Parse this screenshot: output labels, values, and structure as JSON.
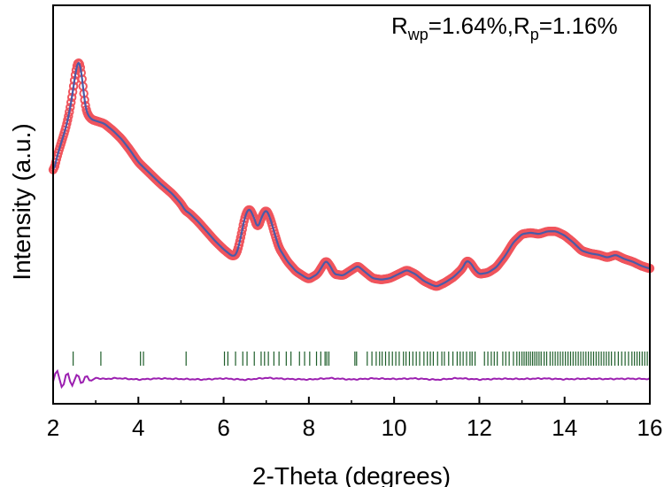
{
  "chart_data": {
    "type": "scatter",
    "xlabel": "2-Theta (degrees)",
    "ylabel": "Intensity (a.u.)",
    "xlim": [
      2,
      16
    ],
    "ylim": [
      0,
      1
    ],
    "x_ticks": [
      2,
      4,
      6,
      8,
      10,
      12,
      14,
      16
    ],
    "x_tick_labels": [
      "2",
      "4",
      "6",
      "8",
      "10",
      "12",
      "14",
      "16"
    ],
    "y_ticks_shown": false,
    "annotation": {
      "r_label": "R",
      "wp_sub": "wp",
      "wp_value": "=1.64%,",
      "p_sub": "p",
      "p_value": "=1.16%"
    },
    "series": [
      {
        "role": "observed",
        "marker": "open-circle",
        "color": "#f0545c",
        "x": [
          2.0,
          2.1,
          2.2,
          2.3,
          2.4,
          2.5,
          2.55,
          2.6,
          2.65,
          2.7,
          2.75,
          2.8,
          2.9,
          3.0,
          3.2,
          3.4,
          3.6,
          3.8,
          4.0,
          4.2,
          4.5,
          4.8,
          5.0,
          5.1,
          5.2,
          5.4,
          5.6,
          5.8,
          6.0,
          6.2,
          6.3,
          6.4,
          6.5,
          6.6,
          6.7,
          6.8,
          6.9,
          7.0,
          7.1,
          7.2,
          7.3,
          7.5,
          7.7,
          7.9,
          8.0,
          8.2,
          8.3,
          8.4,
          8.5,
          8.6,
          8.8,
          9.0,
          9.15,
          9.3,
          9.5,
          9.7,
          9.9,
          10.1,
          10.3,
          10.5,
          10.7,
          10.9,
          11.0,
          11.2,
          11.4,
          11.6,
          11.7,
          11.8,
          11.9,
          12.0,
          12.2,
          12.4,
          12.6,
          12.8,
          13.0,
          13.2,
          13.4,
          13.6,
          13.8,
          14.0,
          14.2,
          14.4,
          14.6,
          14.8,
          15.0,
          15.2,
          15.4,
          15.6,
          15.8,
          16.0
        ],
        "y": [
          0.565,
          0.63,
          0.68,
          0.73,
          0.8,
          0.9,
          0.955,
          0.975,
          0.95,
          0.88,
          0.81,
          0.78,
          0.76,
          0.755,
          0.745,
          0.72,
          0.69,
          0.65,
          0.605,
          0.575,
          0.53,
          0.49,
          0.455,
          0.43,
          0.42,
          0.39,
          0.355,
          0.32,
          0.29,
          0.265,
          0.27,
          0.33,
          0.41,
          0.44,
          0.41,
          0.365,
          0.41,
          0.435,
          0.4,
          0.345,
          0.295,
          0.245,
          0.21,
          0.19,
          0.182,
          0.2,
          0.225,
          0.25,
          0.23,
          0.2,
          0.195,
          0.215,
          0.23,
          0.21,
          0.185,
          0.18,
          0.185,
          0.2,
          0.215,
          0.2,
          0.175,
          0.16,
          0.155,
          0.17,
          0.19,
          0.22,
          0.25,
          0.24,
          0.215,
          0.2,
          0.205,
          0.225,
          0.265,
          0.315,
          0.345,
          0.35,
          0.345,
          0.355,
          0.355,
          0.34,
          0.315,
          0.285,
          0.275,
          0.27,
          0.26,
          0.27,
          0.255,
          0.245,
          0.23,
          0.22
        ]
      },
      {
        "role": "calculated",
        "marker": "line",
        "color": "#4a5ba8"
      },
      {
        "role": "difference",
        "marker": "line",
        "color": "#9b1fb0",
        "x": [
          2.0,
          2.05,
          2.1,
          2.15,
          2.2,
          2.25,
          2.3,
          2.35,
          2.4,
          2.45,
          2.5,
          2.55,
          2.6,
          2.65,
          2.7,
          2.75,
          2.8,
          2.85,
          2.9,
          3.0,
          3.2,
          3.5,
          4.0,
          4.5,
          5.0,
          5.5,
          6.0,
          6.5,
          7.0,
          7.5,
          8.0,
          8.5,
          9.0,
          9.5,
          10.0,
          10.5,
          11.0,
          11.5,
          12.0,
          12.5,
          13.0,
          13.5,
          14.0,
          14.5,
          15.0,
          15.5,
          16.0
        ],
        "y": [
          -0.01,
          0.02,
          0.03,
          0.0,
          -0.03,
          -0.02,
          0.015,
          0.02,
          -0.01,
          -0.025,
          -0.005,
          0.015,
          0.01,
          -0.015,
          -0.012,
          0.008,
          0.01,
          -0.005,
          -0.006,
          0.004,
          0.0,
          0.003,
          -0.002,
          0.002,
          0.0,
          -0.002,
          0.002,
          -0.003,
          0.004,
          0.0,
          -0.002,
          0.003,
          -0.002,
          0.002,
          0.0,
          0.002,
          -0.003,
          0.003,
          -0.002,
          0.001,
          0.0,
          0.002,
          -0.001,
          0.001,
          0.0,
          0.001,
          0.0
        ]
      },
      {
        "role": "bragg-positions",
        "marker": "tick",
        "color": "#1e5e2a",
        "x": [
          2.47,
          3.12,
          4.05,
          4.12,
          5.12,
          6.02,
          6.1,
          6.28,
          6.45,
          6.55,
          6.72,
          6.88,
          6.96,
          7.05,
          7.18,
          7.3,
          7.47,
          7.58,
          7.78,
          7.9,
          8.02,
          8.18,
          8.28,
          8.38,
          8.42,
          8.47,
          9.08,
          9.12,
          9.37,
          9.48,
          9.58,
          9.66,
          9.72,
          9.8,
          9.88,
          9.96,
          10.04,
          10.12,
          10.22,
          10.28,
          10.36,
          10.44,
          10.52,
          10.6,
          10.7,
          10.78,
          10.85,
          10.92,
          11.02,
          11.12,
          11.18,
          11.28,
          11.38,
          11.48,
          11.55,
          11.62,
          11.7,
          11.78,
          11.83,
          11.9,
          12.12,
          12.2,
          12.28,
          12.35,
          12.42,
          12.55,
          12.62,
          12.7,
          12.8,
          12.88,
          12.94,
          13.0,
          13.05,
          13.1,
          13.15,
          13.2,
          13.25,
          13.3,
          13.35,
          13.4,
          13.45,
          13.52,
          13.58,
          13.66,
          13.72,
          13.78,
          13.84,
          13.9,
          13.96,
          14.02,
          14.08,
          14.14,
          14.2,
          14.26,
          14.32,
          14.38,
          14.44,
          14.5,
          14.56,
          14.62,
          14.68,
          14.74,
          14.8,
          14.86,
          14.92,
          14.98,
          15.04,
          15.1,
          15.18,
          15.26,
          15.34,
          15.42,
          15.5,
          15.58,
          15.64,
          15.7,
          15.76,
          15.82,
          15.88,
          15.94
        ]
      }
    ]
  }
}
